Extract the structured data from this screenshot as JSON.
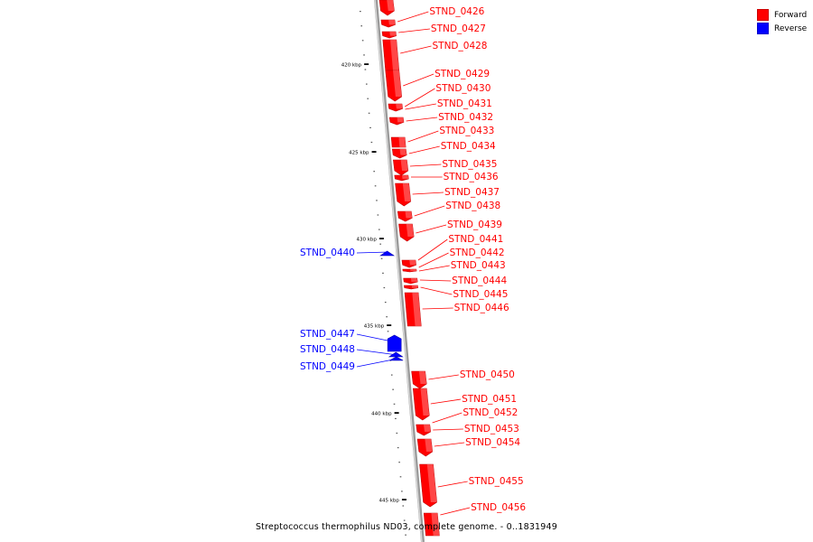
{
  "colors": {
    "forward": "#ff0000",
    "reverse": "#0000ff",
    "backbone": "#b0b0b0",
    "axis": "#000000"
  },
  "legend": {
    "forward_label": "Forward",
    "reverse_label": "Reverse"
  },
  "caption": "Streptococcus thermophilus ND03, complete genome. - 0..1831949",
  "ruler": {
    "labels": [
      "420 kbp",
      "425 kbp",
      "430 kbp",
      "435 kbp",
      "440 kbp",
      "445 kbp"
    ]
  },
  "genes": {
    "forward": [
      "STND_0426",
      "STND_0427",
      "STND_0428",
      "STND_0429",
      "STND_0430",
      "STND_0431",
      "STND_0432",
      "STND_0433",
      "STND_0434",
      "STND_0435",
      "STND_0436",
      "STND_0437",
      "STND_0438",
      "STND_0439",
      "STND_0441",
      "STND_0442",
      "STND_0443",
      "STND_0444",
      "STND_0445",
      "STND_0446",
      "STND_0450",
      "STND_0451",
      "STND_0452",
      "STND_0453",
      "STND_0454",
      "STND_0455",
      "STND_0456"
    ],
    "reverse": [
      "STND_0440",
      "STND_0447",
      "STND_0448",
      "STND_0449"
    ]
  }
}
